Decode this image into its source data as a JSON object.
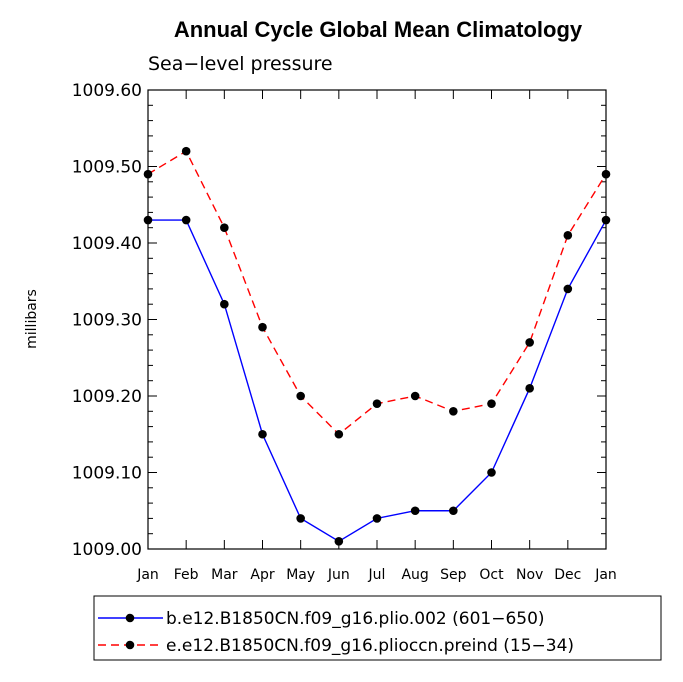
{
  "chart_data": {
    "type": "line",
    "title": "Annual Cycle Global Mean Climatology",
    "subtitle": "Sea−level pressure",
    "xlabel": "",
    "ylabel": "millibars",
    "categories": [
      "Jan",
      "Feb",
      "Mar",
      "Apr",
      "May",
      "Jun",
      "Jul",
      "Aug",
      "Sep",
      "Oct",
      "Nov",
      "Dec",
      "Jan"
    ],
    "ylim": [
      1009.0,
      1009.6
    ],
    "yticks": [
      "1009.00",
      "1009.10",
      "1009.20",
      "1009.30",
      "1009.40",
      "1009.50",
      "1009.60"
    ],
    "series": [
      {
        "name": "b.e12.B1850CN.f09_g16.plio.002 (601−650)",
        "color": "#0000ff",
        "dash": "solid",
        "values": [
          1009.43,
          1009.43,
          1009.32,
          1009.15,
          1009.04,
          1009.01,
          1009.04,
          1009.05,
          1009.05,
          1009.1,
          1009.21,
          1009.34,
          1009.43
        ]
      },
      {
        "name": "e.e12.B1850CN.f09_g16.plioccn.preind (15−34)",
        "color": "#ff0000",
        "dash": "dashed",
        "values": [
          1009.49,
          1009.52,
          1009.42,
          1009.29,
          1009.2,
          1009.15,
          1009.19,
          1009.2,
          1009.18,
          1009.19,
          1009.27,
          1009.41,
          1009.49
        ]
      }
    ],
    "legend_position": "bottom"
  }
}
